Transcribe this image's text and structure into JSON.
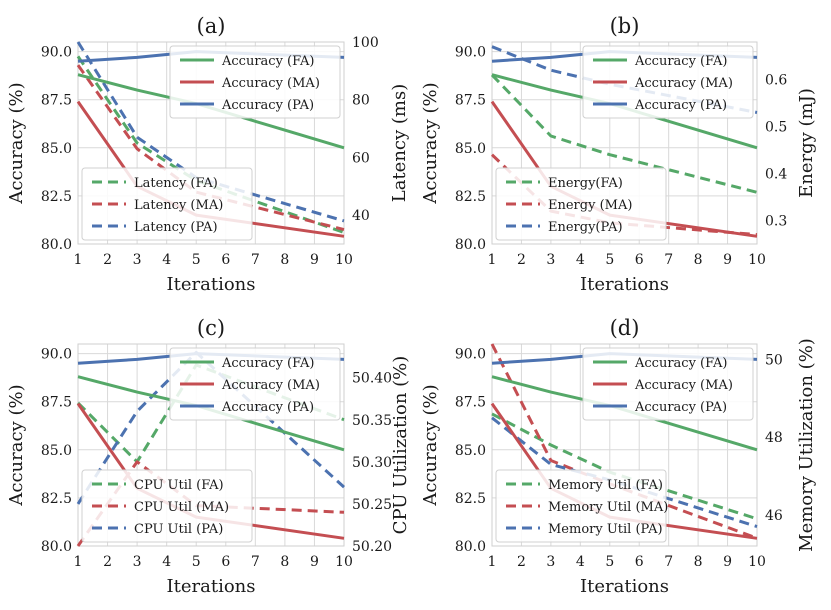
{
  "colors": {
    "FA": "#55a868",
    "MA": "#c44e52",
    "PA": "#4c72b0"
  },
  "chart_data": [
    {
      "type": "line",
      "title": "(a)",
      "xlabel": "Iterations",
      "ylabel": "Accuracy (%)",
      "y2label": "Latency (ms)",
      "x": [
        1,
        3,
        5,
        10
      ],
      "xticks": [
        1,
        2,
        3,
        4,
        5,
        6,
        7,
        8,
        9,
        10
      ],
      "xlim": [
        1,
        10
      ],
      "ylim": [
        80,
        90.5
      ],
      "yticks": [
        80.0,
        82.5,
        85.0,
        87.5,
        90.0
      ],
      "ytick_labels": [
        "80.0",
        "82.5",
        "85.0",
        "87.5",
        "90.0"
      ],
      "y2lim": [
        30,
        100
      ],
      "y2ticks": [
        40,
        60,
        80,
        100
      ],
      "y2tick_labels": [
        "40",
        "60",
        "80",
        "100"
      ],
      "series": [
        {
          "name": "Accuracy (FA)",
          "group": "FA",
          "axis": "left",
          "dashed": false,
          "values": [
            88.8,
            88.0,
            87.3,
            85.0
          ]
        },
        {
          "name": "Accuracy (MA)",
          "group": "MA",
          "axis": "left",
          "dashed": false,
          "values": [
            87.4,
            83.0,
            81.5,
            80.4
          ]
        },
        {
          "name": "Accuracy (PA)",
          "group": "PA",
          "axis": "left",
          "dashed": false,
          "values": [
            89.5,
            89.7,
            90.0,
            89.7
          ]
        },
        {
          "name": "Latency (FA)",
          "group": "FA",
          "axis": "right",
          "dashed": true,
          "values": [
            95,
            65,
            52,
            34
          ]
        },
        {
          "name": "Latency (MA)",
          "group": "MA",
          "axis": "right",
          "dashed": true,
          "values": [
            92,
            63,
            48,
            35
          ]
        },
        {
          "name": "Latency (PA)",
          "group": "PA",
          "axis": "right",
          "dashed": true,
          "values": [
            100,
            67,
            53,
            38
          ]
        }
      ],
      "legends": [
        {
          "position": "top-right",
          "entries": [
            "Accuracy (FA)",
            "Accuracy (MA)",
            "Accuracy (PA)"
          ]
        },
        {
          "position": "bottom-left",
          "entries": [
            "Latency (FA)",
            "Latency (MA)",
            "Latency (PA)"
          ]
        }
      ]
    },
    {
      "type": "line",
      "title": "(b)",
      "xlabel": "Iterations",
      "ylabel": "Accuracy (%)",
      "y2label": "Energy (mJ)",
      "x": [
        1,
        3,
        5,
        10
      ],
      "xticks": [
        1,
        2,
        3,
        4,
        5,
        6,
        7,
        8,
        9,
        10
      ],
      "xlim": [
        1,
        10
      ],
      "ylim": [
        80,
        90.5
      ],
      "yticks": [
        80.0,
        82.5,
        85.0,
        87.5,
        90.0
      ],
      "ytick_labels": [
        "80.0",
        "82.5",
        "85.0",
        "87.5",
        "90.0"
      ],
      "y2lim": [
        0.25,
        0.68
      ],
      "y2ticks": [
        0.3,
        0.4,
        0.5,
        0.6
      ],
      "y2tick_labels": [
        "0.3",
        "0.4",
        "0.5",
        "0.6"
      ],
      "series": [
        {
          "name": "Accuracy (FA)",
          "group": "FA",
          "axis": "left",
          "dashed": false,
          "values": [
            88.8,
            88.0,
            87.3,
            85.0
          ]
        },
        {
          "name": "Accuracy (MA)",
          "group": "MA",
          "axis": "left",
          "dashed": false,
          "values": [
            87.4,
            83.0,
            81.5,
            80.4
          ]
        },
        {
          "name": "Accuracy (PA)",
          "group": "PA",
          "axis": "left",
          "dashed": false,
          "values": [
            89.5,
            89.7,
            90.0,
            89.7
          ]
        },
        {
          "name": "Energy(FA)",
          "group": "FA",
          "axis": "right",
          "dashed": true,
          "values": [
            0.61,
            0.48,
            0.44,
            0.36
          ]
        },
        {
          "name": "Energy (MA)",
          "group": "MA",
          "axis": "right",
          "dashed": true,
          "values": [
            0.44,
            0.32,
            0.295,
            0.27
          ]
        },
        {
          "name": "Energy(PA)",
          "group": "PA",
          "axis": "right",
          "dashed": true,
          "values": [
            0.67,
            0.62,
            0.59,
            0.53
          ]
        }
      ],
      "legends": [
        {
          "position": "top-right",
          "entries": [
            "Accuracy (FA)",
            "Accuracy (MA)",
            "Accuracy (PA)"
          ]
        },
        {
          "position": "bottom-left",
          "entries": [
            "Energy(FA)",
            "Energy (MA)",
            "Energy(PA)"
          ]
        }
      ]
    },
    {
      "type": "line",
      "title": "(c)",
      "xlabel": "Iterations",
      "ylabel": "Accuracy (%)",
      "y2label": "CPU Utilization (%)",
      "x": [
        1,
        3,
        5,
        10
      ],
      "xticks": [
        1,
        2,
        3,
        4,
        5,
        6,
        7,
        8,
        9,
        10
      ],
      "xlim": [
        1,
        10
      ],
      "ylim": [
        80,
        90.5
      ],
      "yticks": [
        80.0,
        82.5,
        85.0,
        87.5,
        90.0
      ],
      "ytick_labels": [
        "80.0",
        "82.5",
        "85.0",
        "87.5",
        "90.0"
      ],
      "y2lim": [
        50.2,
        50.44
      ],
      "y2ticks": [
        50.2,
        50.25,
        50.3,
        50.35,
        50.4
      ],
      "y2tick_labels": [
        "50.20",
        "50.25",
        "50.30",
        "50.35",
        "50.40"
      ],
      "series": [
        {
          "name": "Accuracy (FA)",
          "group": "FA",
          "axis": "left",
          "dashed": false,
          "values": [
            88.8,
            88.0,
            87.3,
            85.0
          ]
        },
        {
          "name": "Accuracy (MA)",
          "group": "MA",
          "axis": "left",
          "dashed": false,
          "values": [
            87.4,
            83.0,
            81.5,
            80.4
          ]
        },
        {
          "name": "Accuracy (PA)",
          "group": "PA",
          "axis": "left",
          "dashed": false,
          "values": [
            89.5,
            89.7,
            90.0,
            89.7
          ]
        },
        {
          "name": "CPU Util (FA)",
          "group": "FA",
          "axis": "right",
          "dashed": true,
          "values": [
            50.37,
            50.3,
            50.415,
            50.35
          ]
        },
        {
          "name": "CPU Util (MA)",
          "group": "MA",
          "axis": "right",
          "dashed": true,
          "values": [
            50.2,
            50.3,
            50.248,
            50.24
          ]
        },
        {
          "name": "CPU Util (PA)",
          "group": "PA",
          "axis": "right",
          "dashed": true,
          "values": [
            50.25,
            50.36,
            50.43,
            50.27
          ]
        }
      ],
      "legends": [
        {
          "position": "top-right",
          "entries": [
            "Accuracy (FA)",
            "Accuracy (MA)",
            "Accuracy (PA)"
          ]
        },
        {
          "position": "bottom-left",
          "entries": [
            "CPU Util (FA)",
            "CPU Util (MA)",
            "CPU Util (PA)"
          ]
        }
      ]
    },
    {
      "type": "line",
      "title": "(d)",
      "xlabel": "Iterations",
      "ylabel": "Accuracy (%)",
      "y2label": "Memory Utilization (%)",
      "x": [
        1,
        3,
        5,
        10
      ],
      "xticks": [
        1,
        2,
        3,
        4,
        5,
        6,
        7,
        8,
        9,
        10
      ],
      "xlim": [
        1,
        10
      ],
      "ylim": [
        80,
        90.5
      ],
      "yticks": [
        80.0,
        82.5,
        85.0,
        87.5,
        90.0
      ],
      "ytick_labels": [
        "80.0",
        "82.5",
        "85.0",
        "87.5",
        "90.0"
      ],
      "y2lim": [
        45.2,
        50.4
      ],
      "y2ticks": [
        46,
        48,
        50
      ],
      "y2tick_labels": [
        "46",
        "48",
        "50"
      ],
      "series": [
        {
          "name": "Accuracy (FA)",
          "group": "FA",
          "axis": "left",
          "dashed": false,
          "values": [
            88.8,
            88.0,
            87.3,
            85.0
          ]
        },
        {
          "name": "Accuracy (MA)",
          "group": "MA",
          "axis": "left",
          "dashed": false,
          "values": [
            87.4,
            83.0,
            81.5,
            80.4
          ]
        },
        {
          "name": "Accuracy (PA)",
          "group": "PA",
          "axis": "left",
          "dashed": false,
          "values": [
            89.5,
            89.7,
            90.0,
            89.7
          ]
        },
        {
          "name": "Memory Util (FA)",
          "group": "FA",
          "axis": "right",
          "dashed": true,
          "values": [
            48.6,
            47.8,
            47.1,
            45.9
          ]
        },
        {
          "name": "Memory Util (MA)",
          "group": "MA",
          "axis": "right",
          "dashed": true,
          "values": [
            50.4,
            47.4,
            46.8,
            45.4
          ]
        },
        {
          "name": "Memory Util (PA)",
          "group": "PA",
          "axis": "right",
          "dashed": true,
          "values": [
            48.5,
            47.3,
            46.9,
            45.7
          ]
        }
      ],
      "legends": [
        {
          "position": "top-right",
          "entries": [
            "Accuracy (FA)",
            "Accuracy (MA)",
            "Accuracy (PA)"
          ]
        },
        {
          "position": "bottom-left",
          "entries": [
            "Memory Util (FA)",
            "Memory Util (MA)",
            "Memory Util (PA)"
          ]
        }
      ]
    }
  ]
}
